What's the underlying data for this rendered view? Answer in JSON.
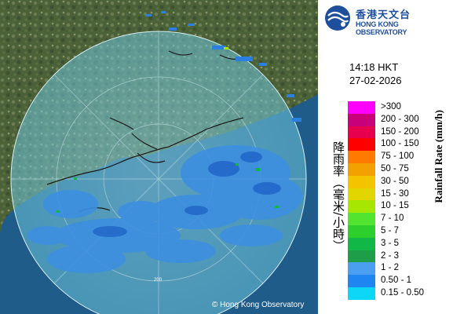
{
  "logo": {
    "name_zh": "香港天文台",
    "name_en": "HONG KONG OBSERVATORY"
  },
  "time": "14:18 HKT",
  "date": "27-02-2026",
  "copyright": "© Hong Kong Observatory",
  "axis_label_zh": "降雨率（毫米/小時）",
  "axis_label_en": "Rainfall Rate (mm/h)",
  "legend": [
    {
      "range": ">300",
      "color": "#ff00ff"
    },
    {
      "range": "200 - 300",
      "color": "#c8007a"
    },
    {
      "range": "150 - 200",
      "color": "#e6004e"
    },
    {
      "range": "100 - 150",
      "color": "#ff0000"
    },
    {
      "range": "75 - 100",
      "color": "#ff7a00"
    },
    {
      "range": "50 - 75",
      "color": "#f2a100"
    },
    {
      "range": "30 - 50",
      "color": "#f5c400"
    },
    {
      "range": "15 - 30",
      "color": "#e2d600"
    },
    {
      "range": "10 - 15",
      "color": "#a6e600"
    },
    {
      "range": "7 - 10",
      "color": "#52e52f"
    },
    {
      "range": "5 - 7",
      "color": "#2dcf2d"
    },
    {
      "range": "3 - 5",
      "color": "#12b847"
    },
    {
      "range": "2 - 3",
      "color": "#1f9e4a"
    },
    {
      "range": "1 - 2",
      "color": "#4a9ff0"
    },
    {
      "range": "0.50 - 1",
      "color": "#1f85f0"
    },
    {
      "range": "0.15 - 0.50",
      "color": "#0cd7f5"
    }
  ],
  "range_ring_label": "200"
}
